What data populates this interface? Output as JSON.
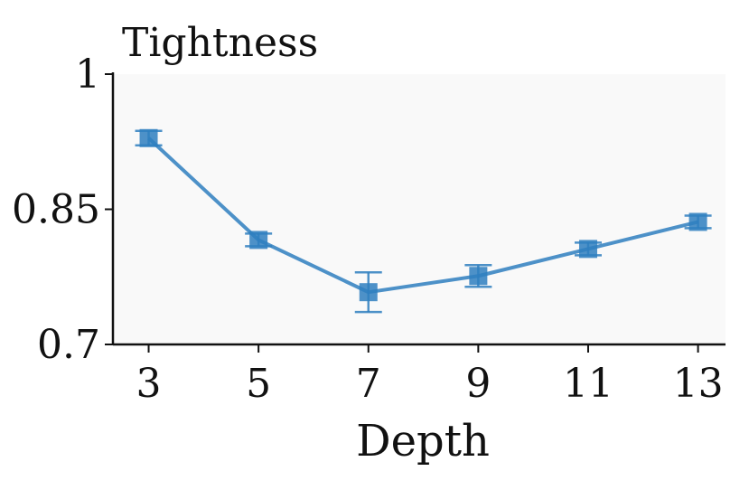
{
  "chart_data": {
    "type": "line",
    "title": "Tightness",
    "xlabel": "Depth",
    "ylabel": "",
    "x": [
      3,
      5,
      7,
      9,
      11,
      13
    ],
    "xtick_labels": [
      "3",
      "5",
      "7",
      "9",
      "11",
      "13"
    ],
    "ytick_values": [
      0.7,
      0.85,
      1
    ],
    "ytick_labels": [
      "0.7",
      "0.85",
      "1"
    ],
    "ylim": [
      0.7,
      1.0
    ],
    "series": [
      {
        "values": [
          0.929,
          0.816,
          0.758,
          0.776,
          0.806,
          0.836
        ],
        "error": [
          0.008,
          0.007,
          0.022,
          0.012,
          0.007,
          0.007
        ],
        "marker": "square"
      }
    ],
    "colors": {
      "line": "#2f7fbf",
      "plot_background": "#f9f9f9",
      "axis": "#111111"
    },
    "grid": false,
    "legend": "none"
  }
}
